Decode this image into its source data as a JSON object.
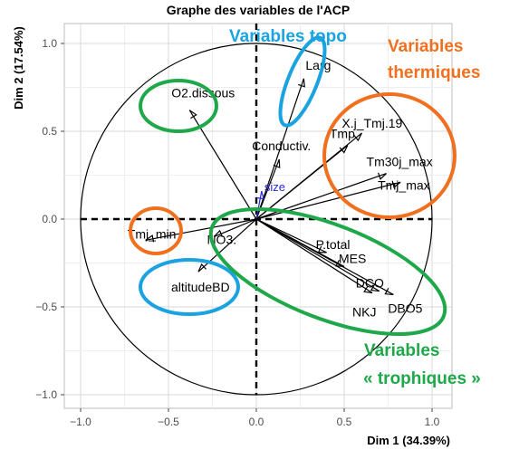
{
  "chart_data": {
    "type": "scatter",
    "title": "Graphe des variables de l'ACP",
    "xlabel": "Dim 1 (34.39%)",
    "ylabel": "Dim 2 (17.54%)",
    "xlim": [
      -1.0,
      1.0
    ],
    "ylim": [
      -1.0,
      1.0
    ],
    "x_ticks": [
      "−1.0",
      "−0.5",
      "0.0",
      "0.5",
      "1.0"
    ],
    "y_ticks": [
      "1.0",
      "0.5",
      "0.0",
      "−0.5",
      "−1.0"
    ],
    "grid": true,
    "correlation_circle_radius": 1.0,
    "variables": [
      {
        "name": "Larg",
        "x": 0.27,
        "y": 0.8
      },
      {
        "name": "X.j_Tmj.19",
        "x": 0.6,
        "y": 0.49
      },
      {
        "name": "Tmp",
        "x": 0.52,
        "y": 0.42
      },
      {
        "name": "Tm30j_max",
        "x": 0.74,
        "y": 0.26
      },
      {
        "name": "Tmj_max",
        "x": 0.82,
        "y": 0.21
      },
      {
        "name": "O2.dissous",
        "x": -0.38,
        "y": 0.62
      },
      {
        "name": "Conductiv.",
        "x": 0.13,
        "y": 0.34
      },
      {
        "name": "size",
        "x": 0.03,
        "y": 0.16,
        "supplementary": true
      },
      {
        "name": "Tmj_min",
        "x": -0.63,
        "y": -0.12
      },
      {
        "name": "NO3.",
        "x": -0.24,
        "y": -0.1
      },
      {
        "name": "altitudeBD",
        "x": -0.33,
        "y": -0.3
      },
      {
        "name": "P.total",
        "x": 0.4,
        "y": -0.19
      },
      {
        "name": "MES",
        "x": 0.5,
        "y": -0.27
      },
      {
        "name": "DCO",
        "x": 0.7,
        "y": -0.41
      },
      {
        "name": "DBO5",
        "x": 0.78,
        "y": -0.43
      },
      {
        "name": "NKJ",
        "x": 0.66,
        "y": -0.42
      }
    ],
    "annotations": [
      {
        "text": "Variables topo",
        "color": "#1aa3e0"
      },
      {
        "text": "Variables",
        "color": "#f07020"
      },
      {
        "text": "thermiques",
        "color": "#f07020"
      },
      {
        "text": "Variables",
        "color": "#1fa84a"
      },
      {
        "text": "« trophiques »",
        "color": "#1fa84a"
      }
    ],
    "colors": {
      "blue": "#1aa3e0",
      "orange": "#f07020",
      "green": "#1fa84a",
      "supplementary": "#2a2ae0"
    }
  }
}
